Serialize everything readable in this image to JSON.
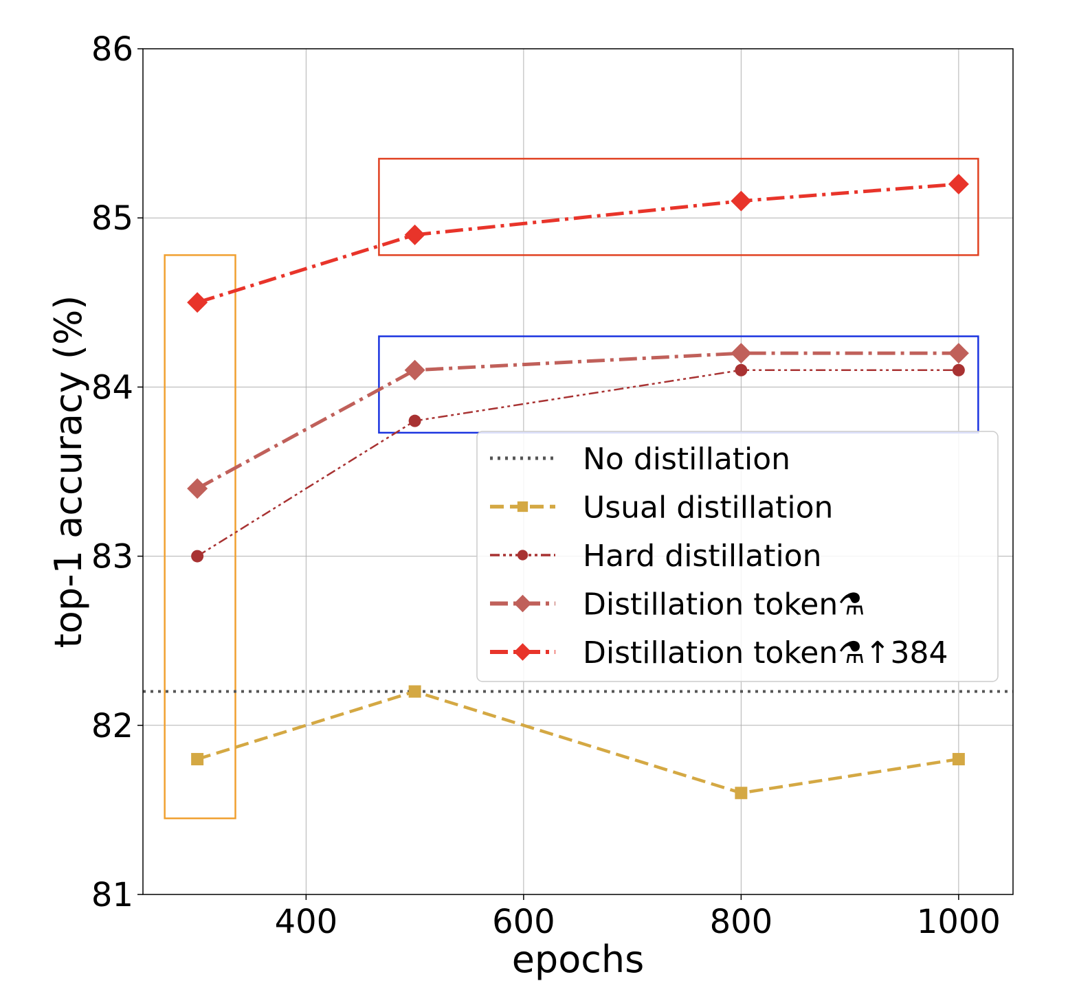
{
  "chart_data": {
    "type": "line",
    "title": "",
    "xlabel": "epochs",
    "ylabel": "top-1 accuracy (%)",
    "xlim": [
      250,
      1050
    ],
    "ylim": [
      81,
      86
    ],
    "x_ticks": [
      400,
      600,
      800,
      1000
    ],
    "y_ticks": [
      81,
      82,
      83,
      84,
      85,
      86
    ],
    "x_tick_labels": [
      "400",
      "600",
      "800",
      "1000"
    ],
    "y_tick_labels": [
      "81",
      "82",
      "83",
      "84",
      "85",
      "86"
    ],
    "grid": true,
    "legend_position": "center-right",
    "x": [
      300,
      500,
      800,
      1000
    ],
    "series": [
      {
        "name": "No distillation",
        "type": "hline",
        "value": 82.2,
        "color": "#555555",
        "dash": "dotted",
        "marker": "none"
      },
      {
        "name": "Usual distillation",
        "values": [
          81.8,
          82.2,
          81.6,
          81.8
        ],
        "color": "#d4a843",
        "dash": "dashed",
        "marker": "square"
      },
      {
        "name": "Hard distillation",
        "values": [
          83.0,
          83.8,
          84.1,
          84.1
        ],
        "color": "#a83232",
        "dash": "dashdotdot",
        "marker": "circle"
      },
      {
        "name": "Distillation token",
        "legend_symbol": "⚗",
        "values": [
          83.4,
          84.1,
          84.2,
          84.2
        ],
        "color": "#c0605a",
        "dash": "dashdot",
        "marker": "diamond"
      },
      {
        "name": "Distillation token",
        "legend_symbol": "⚗↑384",
        "values": [
          84.5,
          84.9,
          85.1,
          85.2
        ],
        "color": "#e8342a",
        "dash": "dashdot",
        "marker": "diamond"
      }
    ],
    "highlight_boxes": [
      {
        "color": "#f0a030",
        "x_range": [
          270,
          335
        ],
        "y_range": [
          81.45,
          84.78
        ]
      },
      {
        "color": "#e04020",
        "x_range": [
          467,
          1018
        ],
        "y_range": [
          84.78,
          85.35
        ]
      },
      {
        "color": "#1a33e0",
        "x_range": [
          467,
          1018
        ],
        "y_range": [
          83.73,
          84.3
        ]
      }
    ]
  }
}
